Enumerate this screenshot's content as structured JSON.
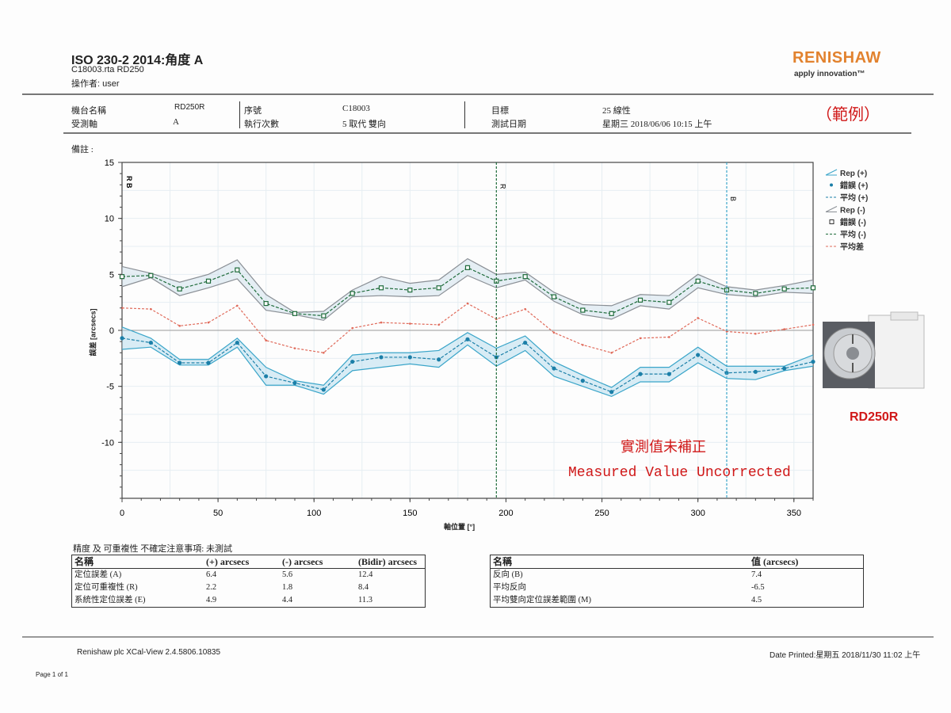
{
  "header": {
    "title": "ISO 230-2 2014:角度 A",
    "file": "C18003.rta RD250",
    "operator": "操作者: user",
    "brand": "RENISHAW",
    "tagline": "apply innovation™"
  },
  "info": {
    "machine_label": "機台名稱",
    "machine_value": "RD250R",
    "axis_label": "受測軸",
    "axis_value": "A",
    "serial_label": "序號",
    "serial_value": "C18003",
    "runs_label": "執行次數",
    "runs_value": "5 取代 雙向",
    "target_label": "目標",
    "target_value": "25 線性",
    "date_label": "測試日期",
    "date_value": "星期三 2018/06/06 10:15 上午",
    "sample_mark": "（範例）",
    "remarks_label": "備註 :"
  },
  "annotations": {
    "cn": "實測值未補正",
    "en": "Measured Value Uncorrected",
    "product_label": "RD250R"
  },
  "chart_data": {
    "type": "line",
    "title": "",
    "xlabel": "軸位置 [°]",
    "ylabel": "誤差 [arcsecs]",
    "xlim": [
      0,
      360
    ],
    "ylim": [
      -15,
      15
    ],
    "xticks": [
      0,
      50,
      100,
      150,
      200,
      250,
      300,
      350
    ],
    "yticks": [
      15,
      10,
      5,
      0,
      -5,
      -10
    ],
    "grid": true,
    "legend_position": "right",
    "legend": [
      "Rep (+)",
      "錯誤 (+)",
      "平均 (+)",
      "Rep (-)",
      "錯誤 (-)",
      "平均 (-)",
      "平均差"
    ],
    "markers": [
      {
        "label": "R",
        "x": 195
      },
      {
        "label": "B",
        "x": 315
      }
    ],
    "x": [
      0,
      15,
      30,
      45,
      60,
      75,
      90,
      105,
      120,
      135,
      150,
      165,
      180,
      195,
      210,
      225,
      240,
      255,
      270,
      285,
      300,
      315,
      330,
      345,
      360
    ],
    "series": [
      {
        "name": "平均 (-)",
        "color": "#1e6b3a",
        "values": [
          4.8,
          4.9,
          3.7,
          4.4,
          5.4,
          2.4,
          1.5,
          1.3,
          3.3,
          3.8,
          3.6,
          3.8,
          5.6,
          4.4,
          4.8,
          3.0,
          1.8,
          1.5,
          2.7,
          2.5,
          4.4,
          3.6,
          3.3,
          3.7,
          3.8
        ]
      },
      {
        "name": "Rep (-) upper",
        "color": "#888888",
        "values": [
          5.7,
          5.1,
          4.3,
          5.0,
          6.3,
          3.2,
          1.6,
          1.7,
          3.6,
          4.8,
          4.2,
          4.5,
          6.4,
          5.0,
          5.2,
          3.4,
          2.3,
          2.2,
          3.2,
          3.1,
          5.0,
          3.9,
          3.6,
          4.0,
          4.5
        ]
      },
      {
        "name": "Rep (-) lower",
        "color": "#888888",
        "values": [
          3.9,
          4.7,
          3.1,
          3.8,
          4.6,
          1.8,
          1.4,
          0.9,
          3.0,
          3.1,
          3.0,
          3.1,
          4.9,
          3.8,
          4.5,
          2.6,
          1.4,
          1.0,
          2.2,
          1.9,
          3.8,
          3.2,
          3.0,
          3.4,
          3.3
        ]
      },
      {
        "name": "平均 (+)",
        "color": "#1b7fa8",
        "values": [
          -0.7,
          -1.1,
          -2.9,
          -2.9,
          -1.1,
          -4.1,
          -4.7,
          -5.3,
          -2.8,
          -2.4,
          -2.4,
          -2.6,
          -0.8,
          -2.4,
          -1.1,
          -3.4,
          -4.5,
          -5.5,
          -3.9,
          -3.9,
          -2.2,
          -3.8,
          -3.7,
          -3.4,
          -2.8
        ]
      },
      {
        "name": "Rep (+) upper",
        "color": "#3aa5c9",
        "values": [
          0.3,
          -0.7,
          -2.6,
          -2.6,
          -0.7,
          -3.3,
          -4.5,
          -4.9,
          -2.2,
          -2.0,
          -2.0,
          -1.8,
          -0.2,
          -1.6,
          -0.5,
          -2.8,
          -4.0,
          -5.1,
          -3.3,
          -3.3,
          -1.5,
          -3.2,
          -3.2,
          -3.2,
          -2.2
        ]
      },
      {
        "name": "Rep (+) lower",
        "color": "#3aa5c9",
        "values": [
          -1.7,
          -1.5,
          -3.1,
          -3.1,
          -1.5,
          -4.9,
          -4.9,
          -5.7,
          -3.6,
          -3.3,
          -3.0,
          -3.3,
          -1.3,
          -3.2,
          -1.8,
          -4.1,
          -5.0,
          -5.9,
          -4.6,
          -4.6,
          -2.9,
          -4.3,
          -4.4,
          -3.6,
          -3.2
        ]
      },
      {
        "name": "平均差",
        "color": "#e06a5a",
        "values": [
          2.0,
          1.9,
          0.4,
          0.7,
          2.2,
          -0.9,
          -1.6,
          -2.0,
          0.2,
          0.7,
          0.6,
          0.5,
          2.4,
          1.0,
          1.9,
          -0.2,
          -1.3,
          -2.0,
          -0.7,
          -0.6,
          1.1,
          -0.1,
          -0.3,
          0.1,
          0.5
        ]
      }
    ]
  },
  "results": {
    "caption": "精度 及 可重複性 不確定注意事項: 未測試",
    "left": {
      "headers": [
        "名稱",
        "(+) arcsecs",
        "(-) arcsecs",
        "(Bidir) arcsecs"
      ],
      "rows": [
        [
          "定位誤差 (A)",
          "6.4",
          "5.6",
          "12.4"
        ],
        [
          "定位可重複性 (R)",
          "2.2",
          "1.8",
          "8.4"
        ],
        [
          "系統性定位誤差 (E)",
          "4.9",
          "4.4",
          "11.3"
        ]
      ]
    },
    "right": {
      "headers": [
        "名稱",
        "值 (arcsecs)"
      ],
      "rows": [
        [
          "反向 (B)",
          "7.4"
        ],
        [
          "平均反向",
          "-6.5"
        ],
        [
          "平均雙向定位誤差範圍 (M)",
          "4.5"
        ]
      ]
    }
  },
  "footer": {
    "software": "Renishaw plc XCal-View 2.4.5806.10835",
    "printed": "Date Printed:星期五 2018/11/30 11:02 上午",
    "page": "Page 1 of 1"
  }
}
